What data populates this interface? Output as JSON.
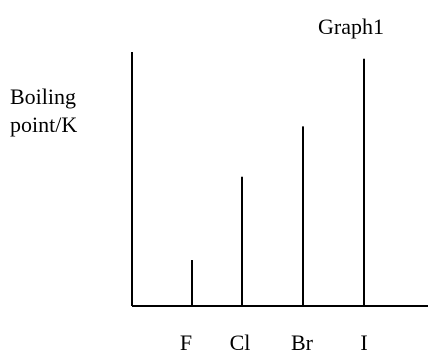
{
  "chart_data": {
    "type": "bar",
    "title": "Graph1",
    "ylabel": "Boiling point/K",
    "xlabel": "",
    "categories": [
      "F",
      "Cl",
      "Br",
      "I"
    ],
    "series": [
      {
        "values": [
          85,
          239,
          332,
          457
        ]
      }
    ],
    "ylim": [
      0,
      500
    ],
    "grid": false,
    "y_tick_labels": false,
    "bar_style": "thin vertical lines",
    "colors": {
      "line": "#000000",
      "background": "#ffffff"
    }
  }
}
